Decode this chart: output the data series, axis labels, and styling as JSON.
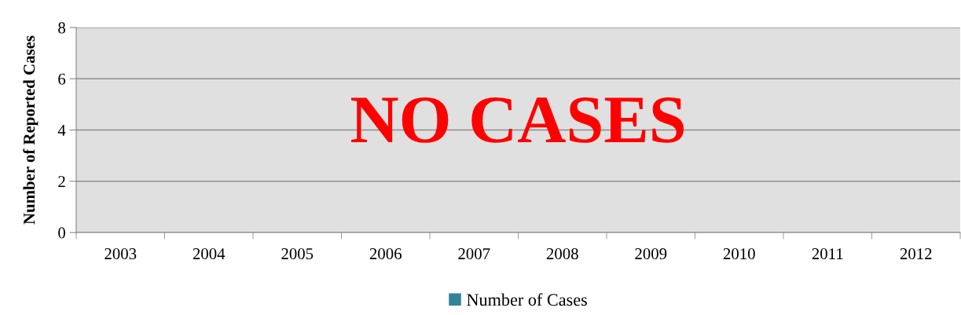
{
  "chart_data": {
    "type": "bar",
    "ylabel": "Number of Reported Cases",
    "categories": [
      "2003",
      "2004",
      "2005",
      "2006",
      "2007",
      "2008",
      "2009",
      "2010",
      "2011",
      "2012"
    ],
    "series": [
      {
        "name": "Number of Cases",
        "color": "#31849b",
        "values": [
          0,
          0,
          0,
          0,
          0,
          0,
          0,
          0,
          0,
          0
        ]
      }
    ],
    "ylim": [
      0,
      8
    ],
    "yticks": [
      0,
      2,
      4,
      6,
      8
    ],
    "grid": "y",
    "legend": "bottom",
    "annotations": [
      "NO CASES"
    ]
  }
}
